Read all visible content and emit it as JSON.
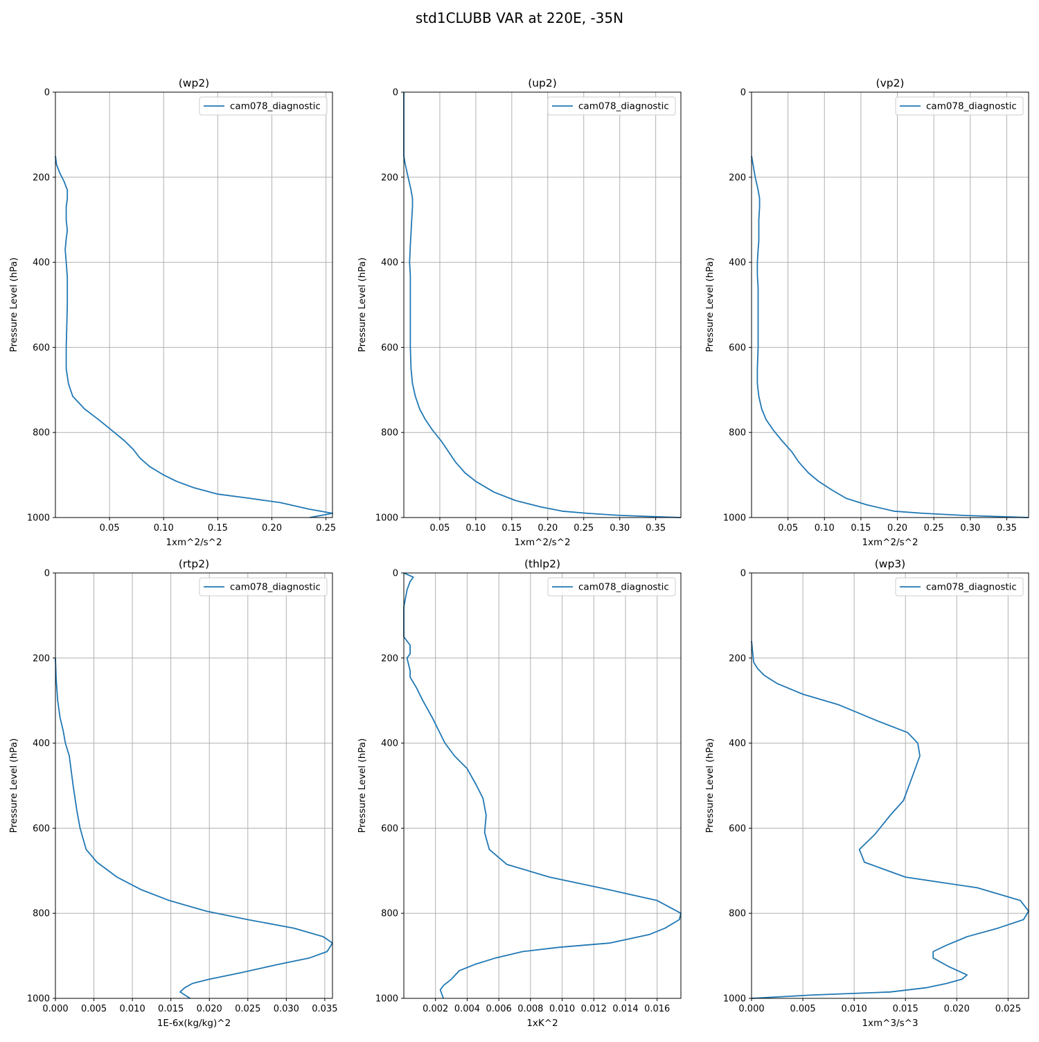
{
  "suptitle": "std1CLUBB VAR at 220E, -35N",
  "colors": {
    "series": "#1f77b4",
    "grid": "#b0b0b0",
    "axes": "#000000"
  },
  "chart_data": [
    {
      "type": "line",
      "title": "(wp2)",
      "xlabel": "1xm^2/s^2",
      "ylabel": "Pressure Level (hPa)",
      "xlim": [
        0,
        0.256
      ],
      "ylim": [
        1000,
        0
      ],
      "xticks": [
        0.05,
        0.1,
        0.15,
        0.2,
        0.25
      ],
      "xtick_labels": [
        "0.05",
        "0.10",
        "0.15",
        "0.20",
        "0.25"
      ],
      "yticks": [
        0,
        200,
        400,
        600,
        800,
        1000
      ],
      "ytick_labels": [
        "0",
        "200",
        "400",
        "600",
        "800",
        "1000"
      ],
      "grid": true,
      "legend": "top-right",
      "series": [
        {
          "name": "cam078_diagnostic",
          "x": [
            0.0,
            0.001,
            0.004,
            0.008,
            0.011,
            0.011,
            0.01,
            0.01,
            0.011,
            0.01,
            0.009,
            0.01,
            0.011,
            0.011,
            0.011,
            0.01,
            0.01,
            0.012,
            0.016,
            0.027,
            0.04,
            0.052,
            0.064,
            0.072,
            0.078,
            0.087,
            0.1,
            0.112,
            0.128,
            0.15,
            0.18,
            0.208,
            0.234,
            0.256,
            0.235
          ],
          "y": [
            150,
            170,
            190,
            210,
            230,
            250,
            270,
            300,
            325,
            345,
            370,
            400,
            435,
            465,
            500,
            600,
            650,
            685,
            715,
            745,
            770,
            795,
            820,
            840,
            860,
            880,
            900,
            915,
            930,
            945,
            955,
            965,
            980,
            990,
            1000
          ]
        }
      ]
    },
    {
      "type": "line",
      "title": "(up2)",
      "xlabel": "1xm^2/s^2",
      "ylabel": "Pressure Level (hPa)",
      "xlim": [
        0,
        0.385
      ],
      "ylim": [
        1000,
        0
      ],
      "xticks": [
        0.05,
        0.1,
        0.15,
        0.2,
        0.25,
        0.3,
        0.35
      ],
      "xtick_labels": [
        "0.05",
        "0.10",
        "0.15",
        "0.20",
        "0.25",
        "0.30",
        "0.35"
      ],
      "yticks": [
        0,
        200,
        400,
        600,
        800,
        1000
      ],
      "ytick_labels": [
        "0",
        "200",
        "400",
        "600",
        "800",
        "1000"
      ],
      "grid": true,
      "legend": "top-right",
      "series": [
        {
          "name": "cam078_diagnostic",
          "x": [
            0.0,
            0.0,
            0.002,
            0.006,
            0.01,
            0.012,
            0.012,
            0.011,
            0.01,
            0.009,
            0.008,
            0.009,
            0.009,
            0.009,
            0.009,
            0.01,
            0.012,
            0.016,
            0.022,
            0.03,
            0.04,
            0.052,
            0.062,
            0.072,
            0.085,
            0.1,
            0.125,
            0.155,
            0.19,
            0.22,
            0.255,
            0.3,
            0.35,
            0.385
          ],
          "y": [
            0,
            150,
            170,
            200,
            230,
            250,
            270,
            300,
            330,
            360,
            400,
            430,
            460,
            500,
            600,
            650,
            685,
            715,
            745,
            770,
            795,
            820,
            845,
            870,
            895,
            915,
            940,
            960,
            975,
            985,
            990,
            995,
            998,
            1000
          ]
        }
      ]
    },
    {
      "type": "line",
      "title": "(vp2)",
      "xlabel": "1xm^2/s^2",
      "ylabel": "Pressure Level (hPa)",
      "xlim": [
        0,
        0.38
      ],
      "ylim": [
        1000,
        0
      ],
      "xticks": [
        0.05,
        0.1,
        0.15,
        0.2,
        0.25,
        0.3,
        0.35
      ],
      "xtick_labels": [
        "0.05",
        "0.10",
        "0.15",
        "0.20",
        "0.25",
        "0.30",
        "0.35"
      ],
      "yticks": [
        0,
        200,
        400,
        600,
        800,
        1000
      ],
      "ytick_labels": [
        "0",
        "200",
        "400",
        "600",
        "800",
        "1000"
      ],
      "grid": true,
      "legend": "top-right",
      "series": [
        {
          "name": "cam078_diagnostic",
          "x": [
            0.0,
            0.002,
            0.005,
            0.009,
            0.011,
            0.011,
            0.01,
            0.01,
            0.01,
            0.009,
            0.008,
            0.008,
            0.009,
            0.009,
            0.009,
            0.008,
            0.008,
            0.01,
            0.014,
            0.02,
            0.03,
            0.042,
            0.055,
            0.065,
            0.078,
            0.092,
            0.11,
            0.13,
            0.158,
            0.195,
            0.235,
            0.29,
            0.345,
            0.38
          ],
          "y": [
            150,
            170,
            200,
            230,
            250,
            270,
            300,
            330,
            350,
            370,
            400,
            430,
            460,
            500,
            600,
            650,
            685,
            715,
            745,
            770,
            795,
            820,
            845,
            870,
            895,
            915,
            935,
            955,
            970,
            985,
            990,
            995,
            998,
            1000
          ]
        }
      ]
    },
    {
      "type": "line",
      "title": "(rtp2)",
      "xlabel": "1E-6x(kg/kg)^2",
      "ylabel": "Pressure Level (hPa)",
      "xlim": [
        0,
        0.036
      ],
      "ylim": [
        1000,
        0
      ],
      "xticks": [
        0.0,
        0.005,
        0.01,
        0.015,
        0.02,
        0.025,
        0.03,
        0.035
      ],
      "xtick_labels": [
        "0.000",
        "0.005",
        "0.010",
        "0.015",
        "0.020",
        "0.025",
        "0.030",
        "0.035"
      ],
      "yticks": [
        0,
        200,
        400,
        600,
        800,
        1000
      ],
      "ytick_labels": [
        "0",
        "200",
        "400",
        "600",
        "800",
        "1000"
      ],
      "grid": true,
      "legend": "top-right",
      "series": [
        {
          "name": "cam078_diagnostic",
          "x": [
            0.0,
            0.0001,
            0.0003,
            0.0006,
            0.001,
            0.0013,
            0.0018,
            0.0023,
            0.0028,
            0.0032,
            0.004,
            0.0054,
            0.008,
            0.0112,
            0.0148,
            0.0196,
            0.025,
            0.031,
            0.0348,
            0.036,
            0.0353,
            0.033,
            0.029,
            0.024,
            0.02,
            0.0178,
            0.0168,
            0.0162,
            0.0175
          ],
          "y": [
            200,
            250,
            300,
            340,
            370,
            400,
            430,
            500,
            560,
            600,
            650,
            680,
            715,
            745,
            770,
            795,
            815,
            835,
            855,
            870,
            890,
            905,
            920,
            940,
            955,
            965,
            975,
            985,
            1000
          ]
        }
      ]
    },
    {
      "type": "line",
      "title": "(thlp2)",
      "xlabel": "1xK^2",
      "ylabel": "Pressure Level (hPa)",
      "xlim": [
        0,
        0.0175
      ],
      "ylim": [
        1000,
        0
      ],
      "xticks": [
        0.002,
        0.004,
        0.006,
        0.008,
        0.01,
        0.012,
        0.014,
        0.016
      ],
      "xtick_labels": [
        "0.002",
        "0.004",
        "0.006",
        "0.008",
        "0.010",
        "0.012",
        "0.014",
        "0.016"
      ],
      "yticks": [
        0,
        200,
        400,
        600,
        800,
        1000
      ],
      "ytick_labels": [
        "0",
        "200",
        "400",
        "600",
        "800",
        "1000"
      ],
      "grid": true,
      "legend": "top-right",
      "series": [
        {
          "name": "cam078_diagnostic",
          "x": [
            0.0,
            0.0006,
            0.0004,
            0.0002,
            0.0,
            0.0,
            0.0004,
            0.0004,
            0.0002,
            0.0004,
            0.0004,
            0.0008,
            0.0012,
            0.0018,
            0.0026,
            0.0032,
            0.004,
            0.0046,
            0.005,
            0.0052,
            0.0051,
            0.0054,
            0.0065,
            0.0092,
            0.013,
            0.016,
            0.0175,
            0.0174,
            0.0165,
            0.0155,
            0.013,
            0.0098,
            0.0075,
            0.0058,
            0.0045,
            0.0035,
            0.003,
            0.0025,
            0.0023,
            0.0024,
            0.0025
          ],
          "y": [
            0,
            10,
            20,
            40,
            80,
            150,
            170,
            190,
            200,
            230,
            245,
            270,
            300,
            340,
            400,
            430,
            460,
            500,
            530,
            570,
            610,
            650,
            685,
            715,
            745,
            770,
            800,
            815,
            835,
            850,
            870,
            880,
            890,
            905,
            920,
            935,
            955,
            970,
            980,
            990,
            1000
          ]
        }
      ]
    },
    {
      "type": "line",
      "title": "(wp3)",
      "xlabel": "1xm^3/s^3",
      "ylabel": "Pressure Level (hPa)",
      "xlim": [
        0,
        0.027
      ],
      "ylim": [
        1000,
        0
      ],
      "xticks": [
        0.0,
        0.005,
        0.01,
        0.015,
        0.02,
        0.025
      ],
      "xtick_labels": [
        "0.000",
        "0.005",
        "0.010",
        "0.015",
        "0.020",
        "0.025"
      ],
      "yticks": [
        0,
        200,
        400,
        600,
        800,
        1000
      ],
      "ytick_labels": [
        "0",
        "200",
        "400",
        "600",
        "800",
        "1000"
      ],
      "grid": true,
      "legend": "top-right",
      "series": [
        {
          "name": "cam078_diagnostic",
          "x": [
            0.0,
            0.0002,
            0.0006,
            0.0012,
            0.0025,
            0.005,
            0.0085,
            0.0125,
            0.0152,
            0.0162,
            0.0164,
            0.0158,
            0.0148,
            0.0135,
            0.012,
            0.0105,
            0.011,
            0.015,
            0.022,
            0.0262,
            0.027,
            0.0265,
            0.024,
            0.021,
            0.019,
            0.0177,
            0.0177,
            0.0192,
            0.021,
            0.0205,
            0.019,
            0.017,
            0.0135,
            0.006,
            0.0
          ],
          "y": [
            160,
            210,
            225,
            240,
            260,
            285,
            310,
            350,
            375,
            400,
            430,
            470,
            535,
            570,
            615,
            650,
            680,
            715,
            740,
            770,
            795,
            815,
            835,
            855,
            875,
            890,
            905,
            925,
            945,
            955,
            965,
            975,
            985,
            992,
            1000
          ]
        }
      ]
    }
  ]
}
